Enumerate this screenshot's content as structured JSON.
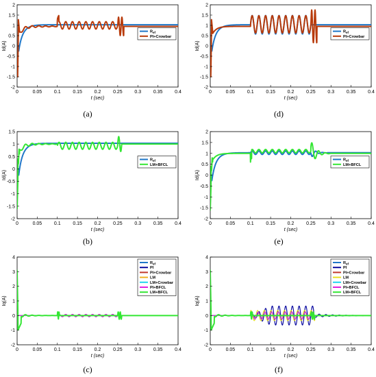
{
  "chart_data": [
    {
      "id": "a",
      "caption": "(a)",
      "type": "line",
      "xlabel": "t (sec)",
      "ylabel": "Id(A)",
      "xlim": [
        0,
        0.4
      ],
      "ylim": [
        -2,
        2
      ],
      "xticks": [
        "0",
        "0.05",
        "0.1",
        "0.15",
        "0.2",
        "0.25",
        "0.3",
        "0.35",
        "0.4"
      ],
      "yticks": [
        "-2",
        "-1.5",
        "-1",
        "-0.5",
        "0",
        "0.5",
        "1",
        "1.5",
        "2"
      ],
      "legend_position": "right-middle",
      "series": [
        {
          "name": "Ref",
          "color": "#1f77c8",
          "shape": "ref"
        },
        {
          "name": "PI+Crowbar",
          "color": "#b83a0a",
          "shape": "id_a"
        }
      ]
    },
    {
      "id": "d",
      "caption": "(d)",
      "type": "line",
      "xlabel": "t (sec)",
      "ylabel": "Id(A)",
      "xlim": [
        0,
        0.4
      ],
      "ylim": [
        -2,
        2
      ],
      "xticks": [
        "0",
        "0.05",
        "0.1",
        "0.15",
        "0.2",
        "0.25",
        "0.3",
        "0.35",
        "0.4"
      ],
      "yticks": [
        "-2",
        "-1.5",
        "-1",
        "-0.5",
        "0",
        "0.5",
        "1",
        "1.5",
        "2"
      ],
      "legend_position": "right-middle",
      "series": [
        {
          "name": "Ref",
          "color": "#1f77c8",
          "shape": "ref_osc"
        },
        {
          "name": "PI+Crowbar",
          "color": "#b83a0a",
          "shape": "id_d"
        }
      ]
    },
    {
      "id": "b",
      "caption": "(b)",
      "type": "line",
      "xlabel": "t (sec)",
      "ylabel": "Id(A)",
      "xlim": [
        0,
        0.4
      ],
      "ylim": [
        -2,
        1.5
      ],
      "xticks": [
        "0",
        "0.05",
        "0.1",
        "0.15",
        "0.2",
        "0.25",
        "0.3",
        "0.35",
        "0.4"
      ],
      "yticks": [
        "-2",
        "-1.5",
        "-1",
        "-0.5",
        "0",
        "0.5",
        "1",
        "1.5"
      ],
      "legend_position": "right-middle",
      "series": [
        {
          "name": "Ref",
          "color": "#1f77c8",
          "shape": "ref"
        },
        {
          "name": "LM+BFCL",
          "color": "#33e633",
          "shape": "id_b"
        }
      ]
    },
    {
      "id": "e",
      "caption": "(e)",
      "type": "line",
      "xlabel": "t (sec)",
      "ylabel": "Id(A)",
      "xlim": [
        0,
        0.4
      ],
      "ylim": [
        -2,
        2
      ],
      "xticks": [
        "0",
        "0.05",
        "0.1",
        "0.15",
        "0.2",
        "0.25",
        "0.3",
        "0.35",
        "0.4"
      ],
      "yticks": [
        "-2",
        "-1.5",
        "-1",
        "-0.5",
        "0",
        "0.5",
        "1",
        "1.5",
        "2"
      ],
      "legend_position": "right-middle",
      "series": [
        {
          "name": "Ref",
          "color": "#1f77c8",
          "shape": "ref_e"
        },
        {
          "name": "LM+BFCL",
          "color": "#33e633",
          "shape": "id_e"
        }
      ]
    },
    {
      "id": "c",
      "caption": "(c)",
      "type": "line",
      "xlabel": "t (sec)",
      "ylabel": "Iq(A)",
      "xlim": [
        0,
        0.4
      ],
      "ylim": [
        -2,
        4
      ],
      "xticks": [
        "0",
        "0.05",
        "0.1",
        "0.15",
        "0.2",
        "0.25",
        "0.3",
        "0.35",
        "0.4"
      ],
      "yticks": [
        "-2",
        "-1",
        "0",
        "1",
        "2",
        "3",
        "4"
      ],
      "legend_position": "top-right",
      "series": [
        {
          "name": "Ref",
          "color": "#1f77c8",
          "shape": "iq_ref"
        },
        {
          "name": "PI",
          "color": "#0a0aa0",
          "shape": "iq_small"
        },
        {
          "name": "PI+Crowbar",
          "color": "#c0392b",
          "shape": "iq_small"
        },
        {
          "name": "LM",
          "color": "#f0b020",
          "shape": "iq_small"
        },
        {
          "name": "LM+Crowbar",
          "color": "#22d3ee",
          "shape": "iq_small"
        },
        {
          "name": "PI+BFCL",
          "color": "#e020e0",
          "shape": "iq_small"
        },
        {
          "name": "LM+BFCL",
          "color": "#33e633",
          "shape": "iq_main"
        }
      ]
    },
    {
      "id": "f",
      "caption": "(f)",
      "type": "line",
      "xlabel": "t (sec)",
      "ylabel": "Iq(A)",
      "xlim": [
        0,
        0.4
      ],
      "ylim": [
        -2,
        4
      ],
      "xticks": [
        "0",
        "0.05",
        "0.1",
        "0.15",
        "0.2",
        "0.25",
        "0.3",
        "0.35",
        "0.4"
      ],
      "yticks": [
        "-2",
        "-1",
        "0",
        "1",
        "2",
        "3",
        "4"
      ],
      "legend_position": "top-right",
      "series": [
        {
          "name": "Ref",
          "color": "#1f77c8",
          "shape": "iq_ref"
        },
        {
          "name": "PI",
          "color": "#0a0aa0",
          "shape": "iq_pi_f"
        },
        {
          "name": "PI+Crowbar",
          "color": "#c0392b",
          "shape": "iq_mid_f"
        },
        {
          "name": "LM",
          "color": "#e8e020",
          "shape": "iq_lm_f"
        },
        {
          "name": "LM+Crowbar",
          "color": "#22d3ee",
          "shape": "iq_mid_f"
        },
        {
          "name": "PI+BFCL",
          "color": "#e020e0",
          "shape": "iq_mid_f"
        },
        {
          "name": "LM+BFCL",
          "color": "#33e633",
          "shape": "iq_main"
        }
      ]
    }
  ]
}
